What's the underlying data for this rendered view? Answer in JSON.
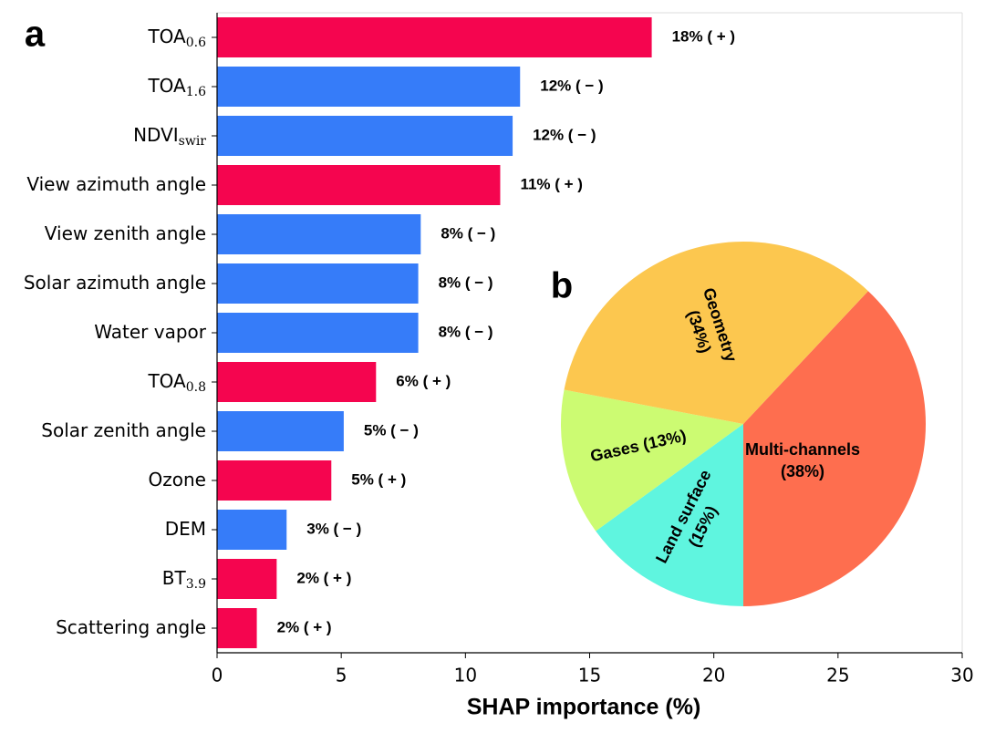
{
  "chart_data": [
    {
      "type": "hbar",
      "panel_label": "a",
      "xlabel": "SHAP importance (%)",
      "categories": [
        "TOA",
        "TOA",
        "NDVI",
        "View azimuth angle",
        "View zenith angle",
        "Solar azimuth angle",
        "Water vapor",
        "TOA",
        "Solar zenith angle",
        "Ozone",
        "DEM",
        "BT",
        "Scattering angle"
      ],
      "category_subscripts": [
        "0.6",
        "1.6",
        "swir",
        null,
        null,
        null,
        null,
        "0.8",
        null,
        null,
        null,
        "3.9",
        null
      ],
      "values": [
        17.5,
        12.2,
        11.9,
        11.4,
        8.2,
        8.1,
        8.1,
        6.4,
        5.1,
        4.6,
        2.8,
        2.4,
        1.6
      ],
      "value_labels": [
        "18% ( + )",
        "12% ( − )",
        "12% ( − )",
        "11% ( + )",
        "8% ( − )",
        "8% ( − )",
        "8% ( − )",
        "6% ( + )",
        "5% ( − )",
        "5% ( + )",
        "3% ( − )",
        "2% ( + )",
        "2% ( + )"
      ],
      "colors": [
        "#f5054f",
        "#367cf9",
        "#367cf9",
        "#f5054f",
        "#367cf9",
        "#367cf9",
        "#367cf9",
        "#f5054f",
        "#367cf9",
        "#f5054f",
        "#367cf9",
        "#f5054f",
        "#f5054f"
      ],
      "xlim": [
        0,
        30
      ],
      "xticks": [
        0,
        5,
        10,
        15,
        20,
        25,
        30
      ]
    },
    {
      "type": "pie",
      "panel_label": "b",
      "categories": [
        "Multi-channels",
        "Land surface",
        "Gases",
        "Geometry"
      ],
      "values": [
        38,
        15,
        13,
        34
      ],
      "value_labels": [
        "(38%)",
        "(15%)",
        "(13%)",
        "(34%)"
      ],
      "colors": [
        "#fe6e4f",
        "#5ff5df",
        "#ccfb72",
        "#fcc74f"
      ]
    }
  ]
}
